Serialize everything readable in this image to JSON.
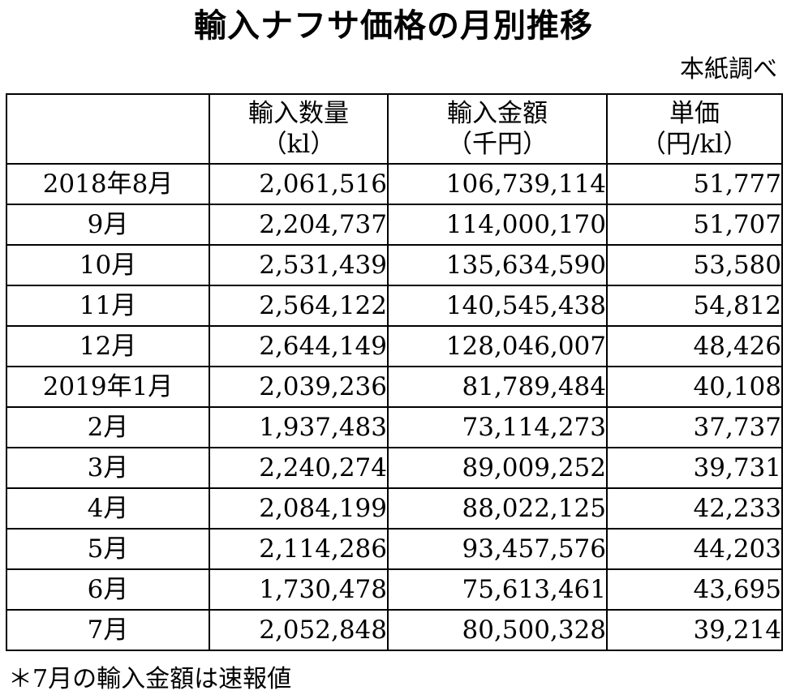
{
  "title": "輸入ナフサ価格の月別推移",
  "source": "本紙調べ",
  "headers": [
    {
      "line1": "",
      "line2": ""
    },
    {
      "line1": "輸入数量",
      "line2": "（kl）"
    },
    {
      "line1": "輸入金額",
      "line2": "（千円）"
    },
    {
      "line1": "単価",
      "line2": "（円/kl）"
    }
  ],
  "rows": [
    {
      "month": "2018年8月",
      "quantity": "2,061,516",
      "amount": "106,739,114",
      "unit_price": "51,777"
    },
    {
      "month": "9月",
      "quantity": "2,204,737",
      "amount": "114,000,170",
      "unit_price": "51,707"
    },
    {
      "month": "10月",
      "quantity": "2,531,439",
      "amount": "135,634,590",
      "unit_price": "53,580"
    },
    {
      "month": "11月",
      "quantity": "2,564,122",
      "amount": "140,545,438",
      "unit_price": "54,812"
    },
    {
      "month": "12月",
      "quantity": "2,644,149",
      "amount": "128,046,007",
      "unit_price": "48,426"
    },
    {
      "month": "2019年1月",
      "quantity": "2,039,236",
      "amount": "81,789,484",
      "unit_price": "40,108"
    },
    {
      "month": "2月",
      "quantity": "1,937,483",
      "amount": "73,114,273",
      "unit_price": "37,737"
    },
    {
      "month": "3月",
      "quantity": "2,240,274",
      "amount": "89,009,252",
      "unit_price": "39,731"
    },
    {
      "month": "4月",
      "quantity": "2,084,199",
      "amount": "88,022,125",
      "unit_price": "42,233"
    },
    {
      "month": "5月",
      "quantity": "2,114,286",
      "amount": "93,457,576",
      "unit_price": "44,203"
    },
    {
      "month": "6月",
      "quantity": "1,730,478",
      "amount": "75,613,461",
      "unit_price": "43,695"
    },
    {
      "month": "7月",
      "quantity": "2,052,848",
      "amount": "80,500,328",
      "unit_price": "39,214"
    }
  ],
  "note": "＊7月の輸入金額は速報値"
}
